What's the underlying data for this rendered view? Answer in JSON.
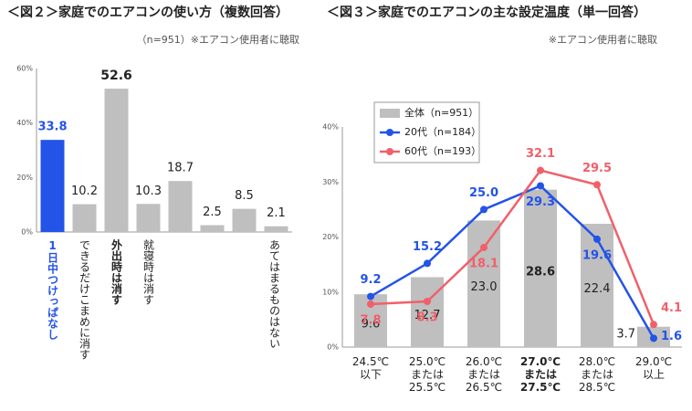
{
  "chart_data": [
    {
      "type": "bar",
      "title": "＜図２＞家庭でのエアコンの使い方（複数回答）",
      "subtitle": "（n=951）※エアコン使用者に聴取",
      "categories": [
        "1日中つけっぱなし",
        "できるだけこまめに消す",
        "外出時は消す",
        "就寝時は消す",
        null,
        null,
        null,
        "あてはまるものはない"
      ],
      "values": [
        33.8,
        10.2,
        52.6,
        10.3,
        18.7,
        2.5,
        8.5,
        2.1
      ],
      "colors": [
        "#2453e8",
        "#bfbfbf",
        "#bfbfbf",
        "#bfbfbf",
        "#bfbfbf",
        "#bfbfbf",
        "#bfbfbf",
        "#bfbfbf"
      ],
      "ylim": [
        0,
        60
      ],
      "yticks": [
        {
          "value": 0,
          "label": "0%"
        },
        {
          "value": 20,
          "label": "20%"
        },
        {
          "value": 40,
          "label": "40%"
        },
        {
          "value": 60,
          "label": "60%"
        }
      ]
    },
    {
      "type": "bar_line",
      "title": "＜図３＞家庭でのエアコンの主な設定温度（単一回答）",
      "subtitle": "※エアコン使用者に聴取",
      "categories": [
        "24.5℃\n以下",
        "25.0℃\nまたは\n25.5℃",
        "26.0℃\nまたは\n26.5℃",
        "27.0℃\nまたは\n27.5℃",
        "28.0℃\nまたは\n28.5℃",
        "29.0℃\n以上"
      ],
      "series": [
        {
          "name": "全体（n=951）",
          "kind": "bar",
          "color": "#bfbfbf",
          "values": [
            9.6,
            12.7,
            23.0,
            28.6,
            22.4,
            3.7
          ],
          "value_labels": [
            "9.6",
            "12.7",
            "23.0",
            "28.6",
            "22.4",
            "3.7"
          ]
        },
        {
          "name": "20代（n=184）",
          "kind": "line",
          "color": "#2453e8",
          "values": [
            9.2,
            15.2,
            25.0,
            29.3,
            19.6,
            1.6
          ],
          "value_labels": [
            "9.2",
            "15.2",
            "25.0",
            "29.3",
            "19.6",
            "1.6"
          ]
        },
        {
          "name": "60代（n=193）",
          "kind": "line",
          "color": "#f0606a",
          "values": [
            7.8,
            8.3,
            18.1,
            32.1,
            29.5,
            4.1
          ],
          "value_labels": [
            "7.8",
            "8.3",
            "18.1",
            "32.1",
            "29.5",
            "4.1"
          ]
        }
      ],
      "ylim": [
        0,
        40
      ],
      "yticks": [
        {
          "value": 0,
          "label": "0%"
        },
        {
          "value": 10,
          "label": "10%"
        },
        {
          "value": 20,
          "label": "20%"
        },
        {
          "value": 30,
          "label": "30%"
        },
        {
          "value": 40,
          "label": "40%"
        }
      ]
    }
  ]
}
